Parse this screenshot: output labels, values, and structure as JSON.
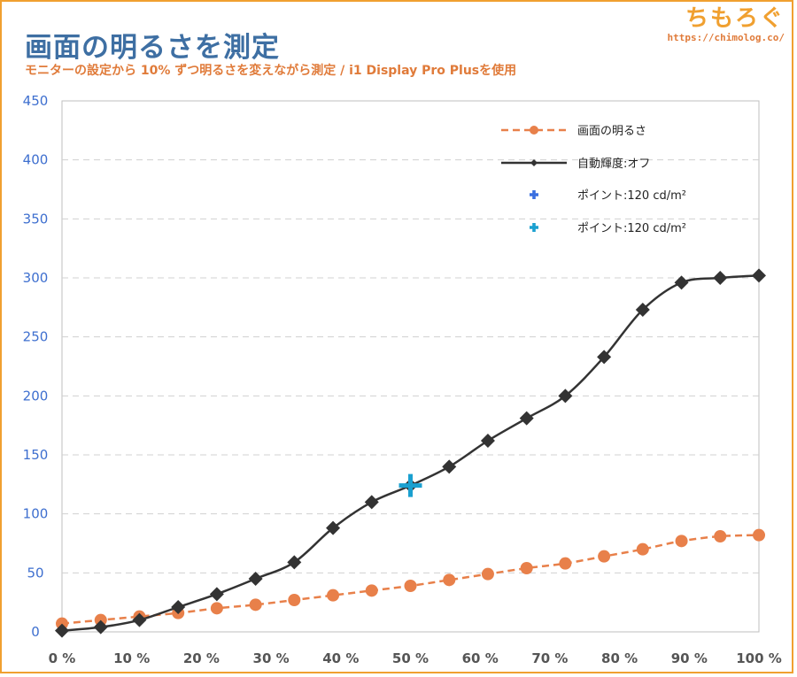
{
  "header": {
    "title": "画面の明るさを測定",
    "subtitle": "モニターの設定から 10% ずつ明るさを変えながら測定 / i1 Display Pro Plusを使用",
    "brand_name": "ちもろぐ",
    "brand_url": "https://chimolog.co/"
  },
  "colors": {
    "brightness_series": "#e8804a",
    "auto_off_series": "#333333",
    "point_blue": "#3a6fe0",
    "point_cyan": "#1aa0d0",
    "y_tick_text": "#3e6fcf",
    "grid": "#d0d0d0",
    "title": "#3e6fa3",
    "accent": "#f0a030"
  },
  "chart_data": {
    "type": "line",
    "ylim": [
      0,
      450
    ],
    "yticks": [
      0,
      50,
      100,
      150,
      200,
      250,
      300,
      350,
      400,
      450
    ],
    "xlim": [
      0,
      100
    ],
    "xticks": [
      0,
      10,
      20,
      30,
      40,
      50,
      60,
      70,
      80,
      90,
      100
    ],
    "xtick_labels": [
      "0 %",
      "10 %",
      "20 %",
      "30 %",
      "40 %",
      "50 %",
      "60 %",
      "70 %",
      "80 %",
      "90 %",
      "100 %"
    ],
    "grid": true,
    "legend_position": "top-right",
    "series": [
      {
        "name": "画面の明るさ",
        "style": "dashed",
        "marker": "circle",
        "x": [
          0,
          5.56,
          11.11,
          16.67,
          22.22,
          27.78,
          33.33,
          38.89,
          44.44,
          50,
          55.56,
          61.11,
          66.67,
          72.22,
          77.78,
          83.33,
          88.89,
          94.44,
          100
        ],
        "y": [
          7,
          10,
          13,
          16,
          20,
          23,
          27,
          31,
          35,
          39,
          44,
          49,
          54,
          58,
          64,
          70,
          77,
          81,
          82
        ]
      },
      {
        "name": "自動輝度:オフ",
        "style": "solid",
        "marker": "diamond",
        "x": [
          0,
          5.56,
          11.11,
          16.67,
          22.22,
          27.78,
          33.33,
          38.89,
          44.44,
          50,
          55.56,
          61.11,
          66.67,
          72.22,
          77.78,
          83.33,
          88.89,
          94.44,
          100
        ],
        "y": [
          1,
          4,
          10,
          21,
          32,
          45,
          59,
          88,
          110,
          124,
          140,
          162,
          181,
          200,
          233,
          273,
          296,
          300,
          302
        ]
      },
      {
        "name": "ポイント:120 cd/m²",
        "marker": "plus-small",
        "x": [],
        "y": []
      },
      {
        "name": "ポイント:120 cd/m²",
        "marker": "plus-large",
        "x": [
          50
        ],
        "y": [
          124
        ]
      }
    ]
  }
}
